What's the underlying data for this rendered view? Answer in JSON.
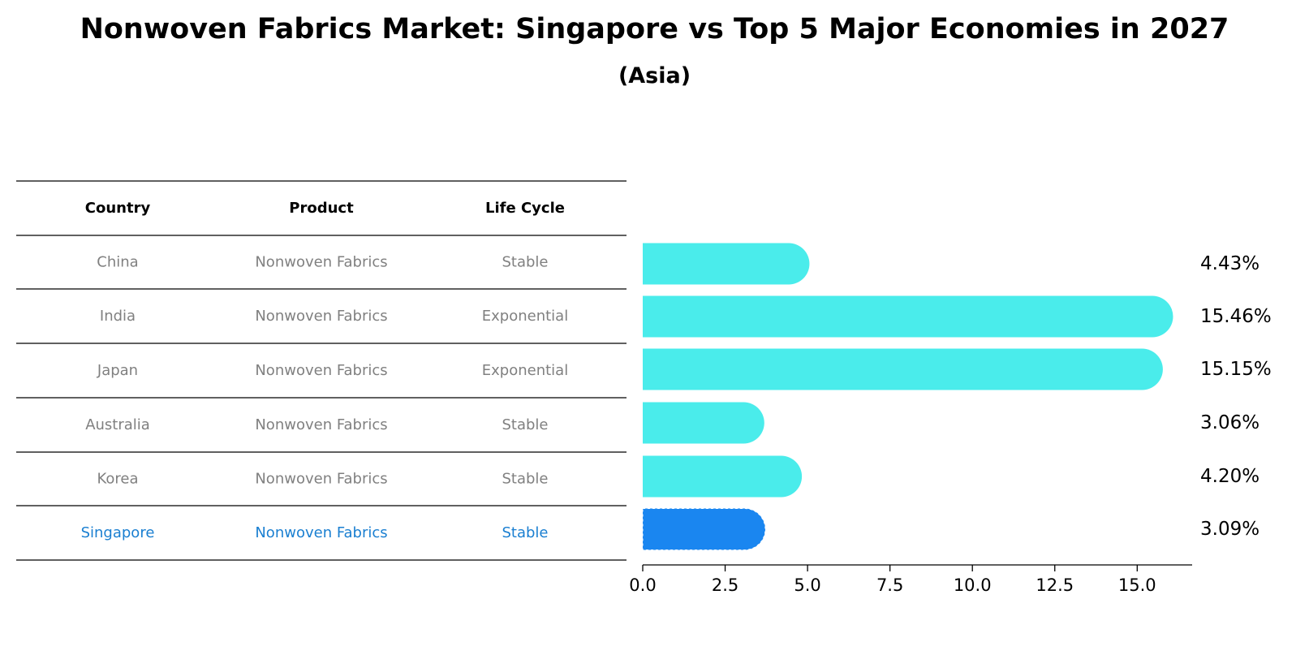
{
  "title": "Nonwoven Fabrics Market: Singapore vs Top 5 Major Economies in 2027",
  "subtitle": "(Asia)",
  "colors": {
    "bar": "#4aeceb",
    "highlight_bar": "#1a86f0",
    "highlight_text": "#1a7fd1",
    "muted_text": "#808080"
  },
  "table": {
    "headers": [
      "Country",
      "Product",
      "Life Cycle"
    ],
    "rows": [
      [
        "China",
        "Nonwoven Fabrics",
        "Stable"
      ],
      [
        "India",
        "Nonwoven Fabrics",
        "Exponential"
      ],
      [
        "Japan",
        "Nonwoven Fabrics",
        "Exponential"
      ],
      [
        "Australia",
        "Nonwoven Fabrics",
        "Stable"
      ],
      [
        "Korea",
        "Nonwoven Fabrics",
        "Stable"
      ],
      [
        "Singapore",
        "Nonwoven Fabrics",
        "Stable"
      ]
    ],
    "highlight_row": 5
  },
  "chart_data": {
    "type": "bar",
    "orientation": "horizontal",
    "categories": [
      "China",
      "India",
      "Japan",
      "Australia",
      "Korea",
      "Singapore"
    ],
    "values": [
      4.43,
      15.46,
      15.15,
      3.06,
      4.2,
      3.09
    ],
    "value_labels": [
      "4.43%",
      "15.46%",
      "15.15%",
      "3.06%",
      "4.20%",
      "3.09%"
    ],
    "title": "Nonwoven Fabrics Market: Singapore vs Top 5 Major Economies in 2027",
    "subtitle": "(Asia)",
    "xlim": [
      0,
      16.2
    ],
    "xticks": [
      0.0,
      2.5,
      5.0,
      7.5,
      10.0,
      12.5,
      15.0
    ],
    "xtick_labels": [
      "0.0",
      "2.5",
      "5.0",
      "7.5",
      "10.0",
      "12.5",
      "15.0"
    ],
    "grid": false,
    "highlight": "Singapore"
  }
}
